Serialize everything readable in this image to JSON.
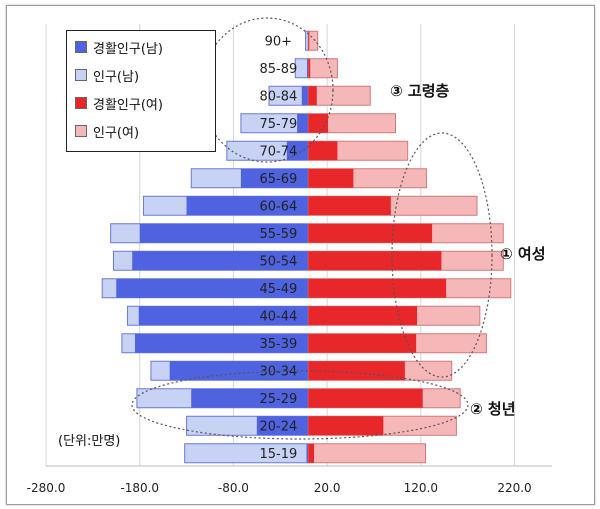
{
  "chart_data": {
    "type": "bar",
    "subtype": "population-pyramid",
    "categories": [
      "15-19",
      "20-24",
      "25-29",
      "30-34",
      "35-39",
      "40-44",
      "45-49",
      "50-54",
      "55-59",
      "60-64",
      "65-69",
      "70-74",
      "75-79",
      "80-84",
      "85-89",
      "90+"
    ],
    "series": [
      {
        "name": "경활인구(남)",
        "color": "#4f62e0",
        "values": [
          -2,
          -55,
          -125,
          -148,
          -185,
          -181,
          -205,
          -188,
          -180,
          -130,
          -72,
          -23,
          -12,
          -7,
          -1.5,
          -0.5
        ]
      },
      {
        "name": "인구(남)",
        "color": "#c7d2f5",
        "values": [
          -132,
          -130,
          -183,
          -168,
          -199,
          -193,
          -220,
          -208,
          -211,
          -176,
          -125,
          -87,
          -72,
          -42,
          -14,
          -3
        ]
      },
      {
        "name": "경활인구(여)",
        "color": "#e8272b",
        "values": [
          6,
          80,
          122,
          103,
          115,
          116,
          147,
          142,
          132,
          88,
          48,
          31,
          21,
          9,
          2,
          1
        ]
      },
      {
        "name": "인구(여)",
        "color": "#f5b7b7",
        "values": [
          125,
          158,
          162,
          153,
          190,
          183,
          216,
          208,
          208,
          180,
          126,
          106,
          93,
          66,
          31,
          10
        ]
      }
    ],
    "xlim": [
      -280,
      260
    ],
    "xticks": [
      "-280.0",
      "-180.0",
      "-80.0",
      "20.0",
      "120.0",
      "220.0"
    ],
    "axis_zero": 0,
    "grid": true,
    "legend_position": "top-left",
    "unit_label": "(단위:만명)",
    "annotations": [
      "③ 고령층",
      "① 여성",
      "② 청년"
    ]
  }
}
